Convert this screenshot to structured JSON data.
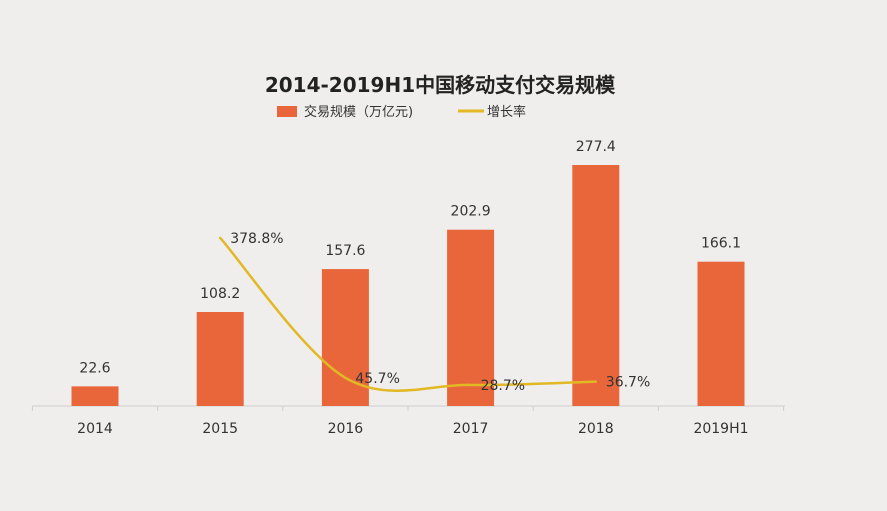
{
  "chart_data": {
    "type": "bar",
    "title": "2014-2019H1中国移动支付交易规模",
    "categories": [
      "2014",
      "2015",
      "2016",
      "2017",
      "2018",
      "2019H1"
    ],
    "series": [
      {
        "name": "交易规模（万亿元)",
        "type": "bar",
        "color": "#e8663a",
        "values": [
          22.6,
          108.2,
          157.6,
          202.9,
          277.4,
          166.1
        ],
        "labels": [
          "22.6",
          "108.2",
          "157.6",
          "202.9",
          "277.4",
          "166.1"
        ]
      },
      {
        "name": "增长率",
        "type": "line",
        "color": "#e2b825",
        "x": [
          "2015",
          "2016",
          "2017",
          "2018"
        ],
        "values": [
          378.8,
          45.7,
          28.7,
          36.7
        ],
        "labels": [
          "378.8%",
          "45.7%",
          "28.7%",
          "36.7%"
        ]
      }
    ],
    "ylim": [
      0,
      300
    ],
    "grid": false,
    "legend_position": "top-center"
  }
}
